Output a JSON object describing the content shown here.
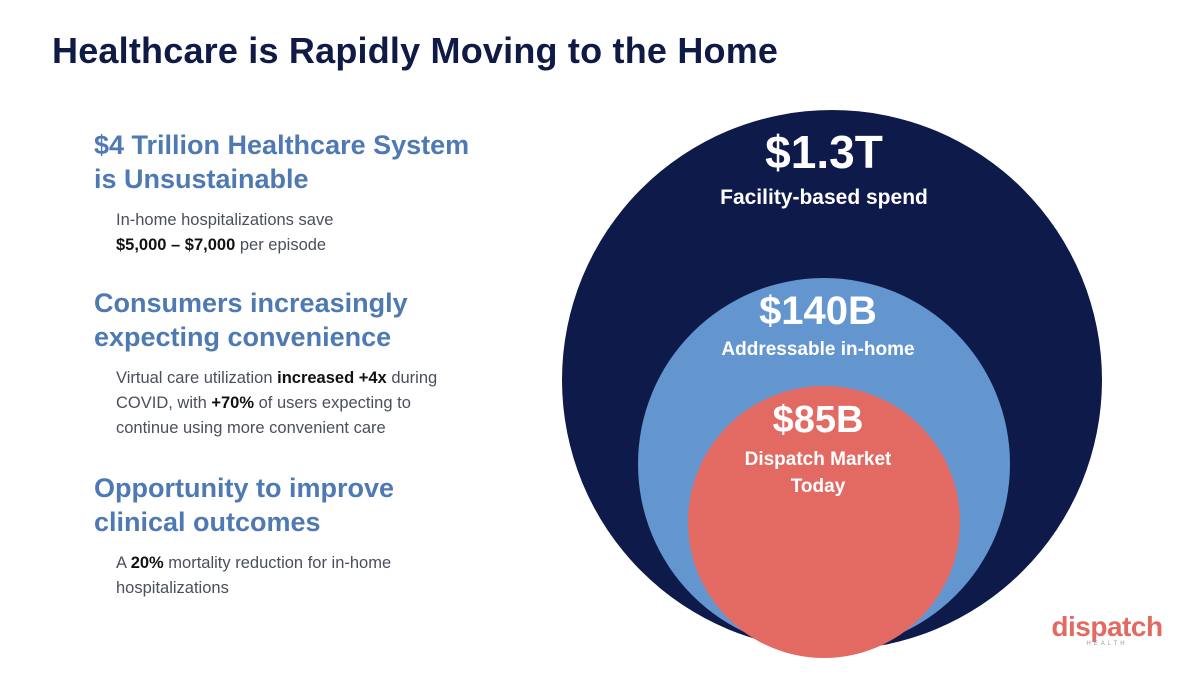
{
  "title": "Healthcare is Rapidly Moving to the Home",
  "points": [
    {
      "heading": [
        "$4 Trillion Healthcare System",
        "is Unsustainable"
      ],
      "body_lines": [
        [
          {
            "t": "In-home hospitalizations save",
            "b": false
          }
        ],
        [
          {
            "t": "$5,000 – $7,000",
            "b": true
          },
          {
            "t": " per episode",
            "b": false
          }
        ]
      ]
    },
    {
      "heading": [
        "Consumers increasingly",
        "expecting convenience"
      ],
      "body_lines": [
        [
          {
            "t": "Virtual care utilization ",
            "b": false
          },
          {
            "t": "increased +4x",
            "b": true
          },
          {
            "t": " during",
            "b": false
          }
        ],
        [
          {
            "t": "COVID, with ",
            "b": false
          },
          {
            "t": "+70%",
            "b": true
          },
          {
            "t": " of users expecting to",
            "b": false
          }
        ],
        [
          {
            "t": "continue using more convenient care",
            "b": false
          }
        ]
      ]
    },
    {
      "heading": [
        "Opportunity to improve",
        "clinical outcomes"
      ],
      "body_lines": [
        [
          {
            "t": "A ",
            "b": false
          },
          {
            "t": "20%",
            "b": true
          },
          {
            "t": " mortality reduction for in-home",
            "b": false
          }
        ],
        [
          {
            "t": "hospitalizations",
            "b": false
          }
        ]
      ]
    }
  ],
  "circles": [
    {
      "value": "$1.3T",
      "label": [
        "Facility-based spend"
      ],
      "color": "#0e1a4a"
    },
    {
      "value": "$140B",
      "label": [
        "Addressable in-home"
      ],
      "color": "#6396cf"
    },
    {
      "value": "$85B",
      "label": [
        "Dispatch Market",
        "Today"
      ],
      "color": "#e26a63"
    }
  ],
  "logo": {
    "word": "dispatch",
    "sub": "HEALTH"
  }
}
